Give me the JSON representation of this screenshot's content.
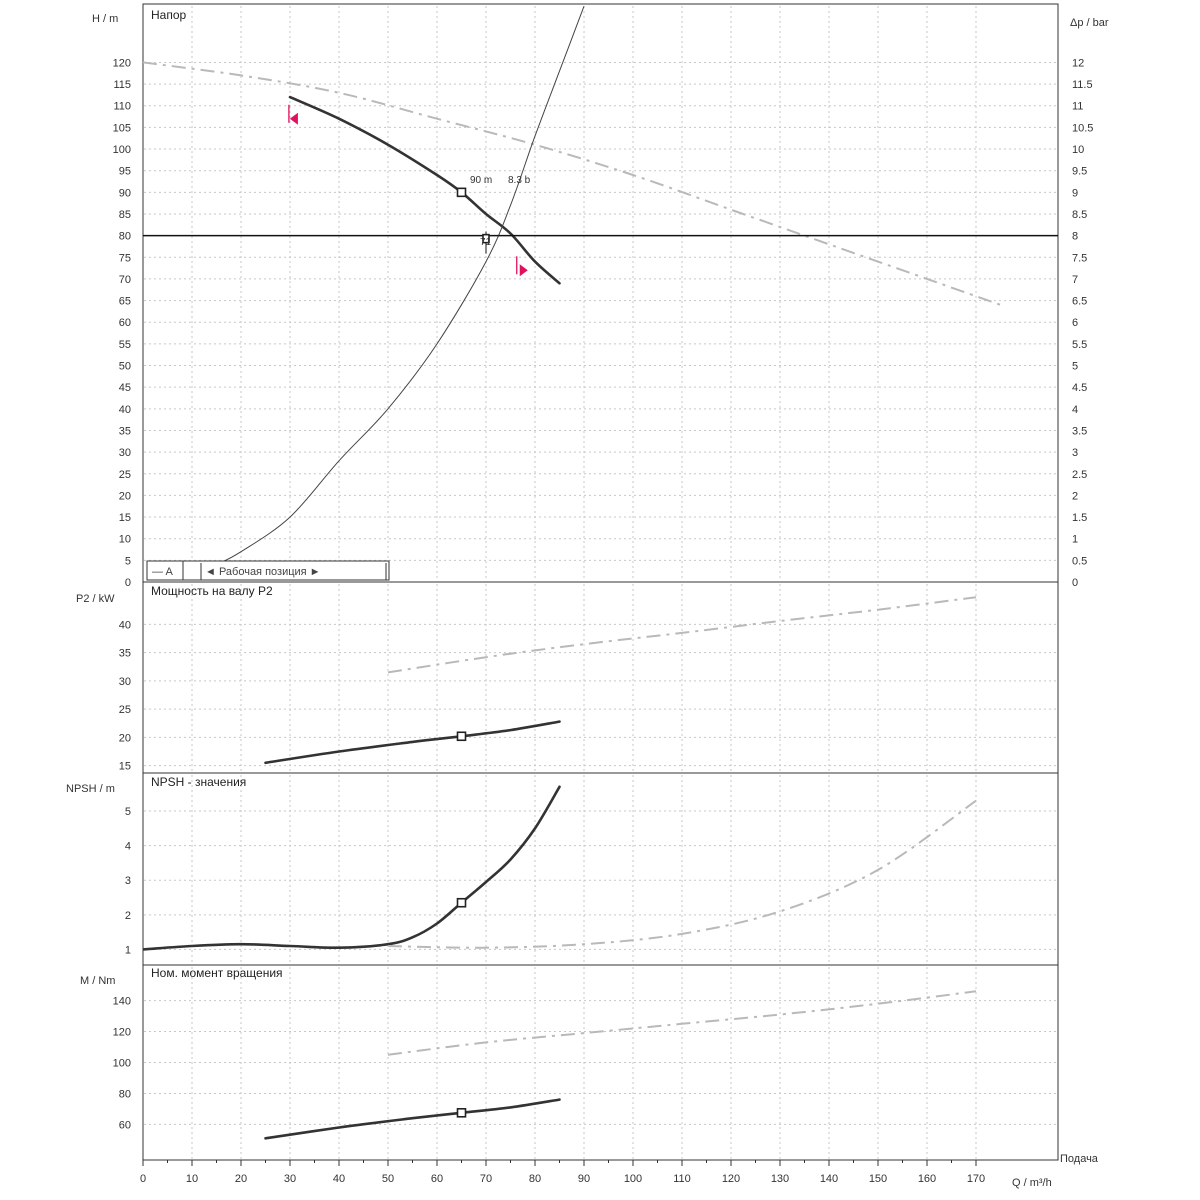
{
  "chart_data": [
    {
      "type": "line",
      "panel": "head",
      "title": "Напор",
      "xlabel": "Q / m³/h",
      "ylabel": "H / m",
      "y2label": "Δp / bar",
      "xlim": [
        0,
        175
      ],
      "ylim": [
        0,
        130
      ],
      "y2lim": [
        0,
        13
      ],
      "x_ticks": [
        0,
        10,
        20,
        30,
        40,
        50,
        60,
        70,
        80,
        90,
        100,
        110,
        120,
        130,
        140,
        150,
        160,
        170
      ],
      "y_ticks": [
        0,
        5,
        10,
        15,
        20,
        25,
        30,
        35,
        40,
        45,
        50,
        55,
        60,
        65,
        70,
        75,
        80,
        85,
        90,
        95,
        100,
        105,
        110,
        115,
        120
      ],
      "y2_ticks": [
        "0",
        "0.5",
        "1",
        "1.5",
        "2",
        "2.5",
        "3",
        "3.5",
        "4",
        "4.5",
        "5",
        "5.5",
        "6",
        "6.5",
        "7",
        "7.5",
        "8",
        "8.5",
        "9",
        "9.5",
        "10",
        "10.5",
        "11",
        "11.5",
        "12"
      ],
      "grid": true,
      "series": [
        {
          "style": "main",
          "x": [
            30,
            40,
            50,
            60,
            65,
            70,
            75,
            80,
            85
          ],
          "y": [
            112,
            107,
            101,
            94,
            90,
            85,
            80.5,
            74,
            69
          ]
        },
        {
          "style": "dashed",
          "x": [
            0,
            20,
            40,
            60,
            80,
            100,
            120,
            140,
            160,
            175
          ],
          "y": [
            120,
            117,
            113,
            107,
            101,
            94,
            86,
            78,
            70,
            64
          ]
        },
        {
          "style": "thin",
          "x": [
            15,
            20,
            30,
            40,
            50,
            60,
            70,
            75,
            80,
            85,
            90
          ],
          "y": [
            4,
            7,
            15,
            28,
            40,
            55,
            74,
            87,
            103,
            118,
            133
          ]
        }
      ],
      "operating_head": 80,
      "operating_point": {
        "x": 65,
        "y": 90,
        "label": "90 m"
      },
      "reference_point": {
        "x": 70,
        "y": 80,
        "label": "71"
      },
      "aux_label": "8.3 b",
      "annotations": [
        {
          "x": 31,
          "y": 107,
          "direction": "left"
        },
        {
          "x": 77.5,
          "y": 72,
          "direction": "right"
        }
      ],
      "legend": {
        "left": "— A",
        "center": "◄ Рабочая позиция ►"
      }
    },
    {
      "type": "line",
      "panel": "power",
      "title": "Мощность на валу P2",
      "ylabel": "P2 / kW",
      "ylim": [
        14,
        46
      ],
      "y_ticks": [
        15,
        20,
        25,
        30,
        35,
        40
      ],
      "grid": true,
      "series": [
        {
          "style": "main",
          "x": [
            25,
            40,
            55,
            65,
            75,
            85
          ],
          "y": [
            15.5,
            17.5,
            19.2,
            20.2,
            21.3,
            22.8
          ]
        },
        {
          "style": "dashed",
          "x": [
            50,
            70,
            90,
            110,
            130,
            150,
            170
          ],
          "y": [
            31.5,
            34.2,
            36.5,
            38.5,
            40.6,
            42.6,
            44.8
          ]
        }
      ],
      "operating_point": {
        "x": 65,
        "y": 20.2
      }
    },
    {
      "type": "line",
      "panel": "npsh",
      "title": "NPSH - значения",
      "ylabel": "NPSH / m",
      "ylim": [
        0.5,
        5.8
      ],
      "y_ticks": [
        1,
        2,
        3,
        4,
        5
      ],
      "grid": true,
      "series": [
        {
          "style": "main",
          "x": [
            0,
            10,
            20,
            30,
            40,
            50,
            55,
            60,
            65,
            70,
            75,
            80,
            85
          ],
          "y": [
            1.0,
            1.1,
            1.15,
            1.1,
            1.05,
            1.15,
            1.35,
            1.75,
            2.35,
            2.95,
            3.6,
            4.5,
            5.7
          ]
        },
        {
          "style": "dashed",
          "x": [
            50,
            70,
            90,
            110,
            130,
            150,
            170
          ],
          "y": [
            1.1,
            1.05,
            1.15,
            1.45,
            2.1,
            3.3,
            5.3
          ]
        }
      ],
      "operating_point": {
        "x": 65,
        "y": 2.35
      }
    },
    {
      "type": "line",
      "panel": "torque",
      "title": "Ном. момент вращения",
      "ylabel": "M / Nm",
      "ylim": [
        40,
        155
      ],
      "y_ticks": [
        60,
        80,
        100,
        120,
        140
      ],
      "grid": true,
      "series": [
        {
          "style": "main",
          "x": [
            25,
            40,
            55,
            65,
            75,
            85
          ],
          "y": [
            51,
            58,
            64,
            67.5,
            71,
            76
          ]
        },
        {
          "style": "dashed",
          "x": [
            50,
            70,
            90,
            110,
            130,
            150,
            170
          ],
          "y": [
            105,
            113,
            119,
            125,
            131,
            138,
            146
          ]
        }
      ],
      "operating_point": {
        "x": 65,
        "y": 67.5
      }
    }
  ],
  "x_axis": {
    "ticks": [
      0,
      10,
      20,
      30,
      40,
      50,
      60,
      70,
      80,
      90,
      100,
      110,
      120,
      130,
      140,
      150,
      160,
      170
    ],
    "unit_label": "Q / m³/h",
    "caption": "Подача"
  }
}
